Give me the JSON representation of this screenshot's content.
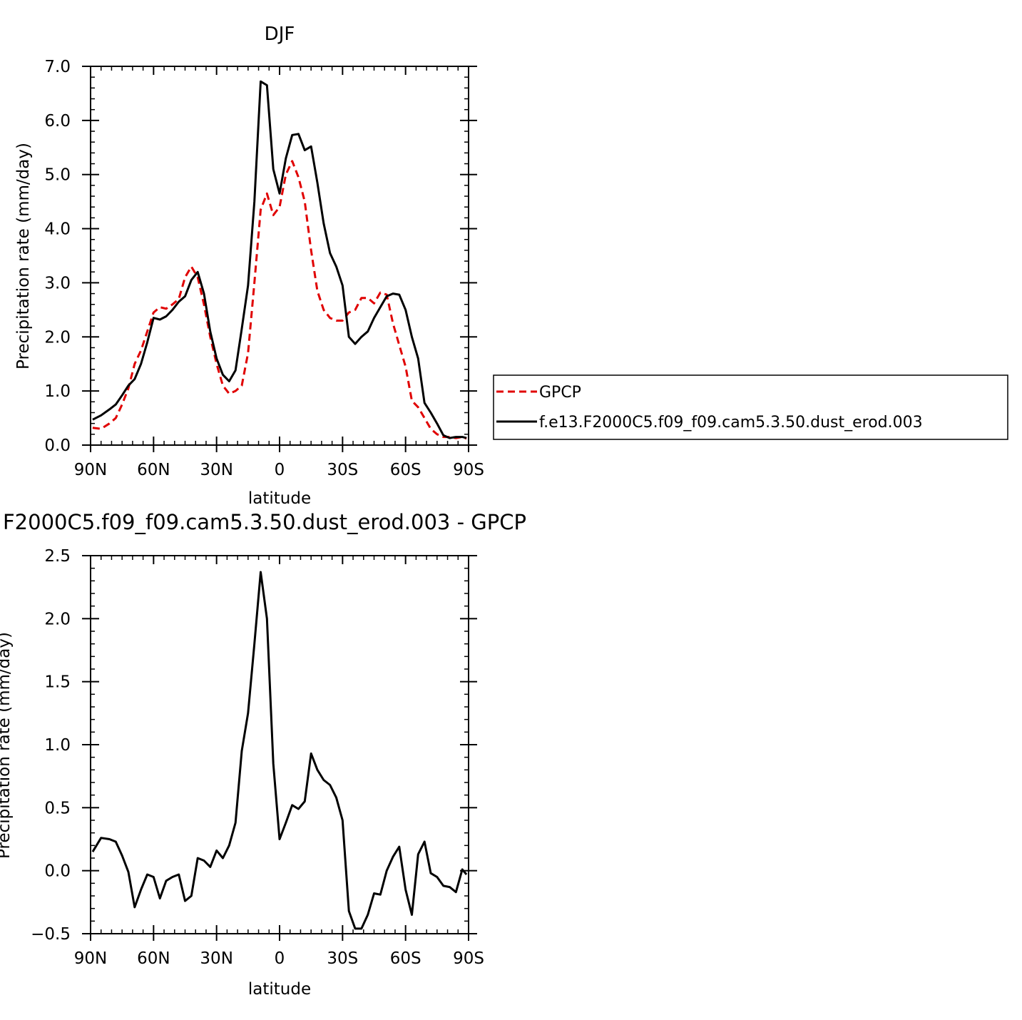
{
  "chart_data": [
    {
      "type": "line",
      "title": "DJF",
      "xlabel": "latitude",
      "ylabel": "Precipitation rate (mm/day)",
      "xlim": [
        90,
        -90
      ],
      "ylim": [
        0,
        7
      ],
      "xticks": [
        90,
        60,
        30,
        0,
        -30,
        -60,
        -90
      ],
      "xtick_labels": [
        "90N",
        "60N",
        "30N",
        "0",
        "30S",
        "60S",
        "90S"
      ],
      "yticks": [
        0,
        1,
        2,
        3,
        4,
        5,
        6,
        7
      ],
      "ytick_labels": [
        "0.0",
        "1.0",
        "2.0",
        "3.0",
        "4.0",
        "5.0",
        "6.0",
        "7.0"
      ],
      "legend_position": "right",
      "series": [
        {
          "name": "GPCP",
          "color": "#e00000",
          "style": "dashed",
          "x": [
            89,
            85,
            81,
            78,
            75,
            72,
            69,
            66,
            63,
            60,
            57,
            54,
            51,
            48,
            45,
            42,
            39,
            36,
            33,
            30,
            27,
            24,
            21,
            18,
            15,
            12,
            9,
            6,
            3,
            0,
            -3,
            -6,
            -9,
            -12,
            -15,
            -18,
            -21,
            -24,
            -27,
            -30,
            -33,
            -36,
            -39,
            -42,
            -45,
            -48,
            -51,
            -54,
            -57,
            -60,
            -63,
            -66,
            -69,
            -72,
            -75,
            -78,
            -81,
            -84,
            -87,
            -89
          ],
          "y": [
            0.32,
            0.3,
            0.4,
            0.5,
            0.75,
            1.05,
            1.5,
            1.75,
            2.1,
            2.45,
            2.55,
            2.52,
            2.6,
            2.7,
            3.1,
            3.3,
            3.1,
            2.6,
            2.0,
            1.5,
            1.1,
            0.95,
            1.0,
            1.1,
            1.7,
            3.0,
            4.35,
            4.65,
            4.25,
            4.4,
            5.0,
            5.25,
            4.95,
            4.5,
            3.6,
            2.85,
            2.5,
            2.35,
            2.3,
            2.3,
            2.45,
            2.5,
            2.72,
            2.72,
            2.62,
            2.82,
            2.78,
            2.25,
            1.85,
            1.45,
            0.82,
            0.7,
            0.5,
            0.3,
            0.2,
            0.15,
            0.15,
            0.13,
            0.15,
            0.12
          ]
        },
        {
          "name": "f.e13.F2000C5.f09_f09.cam5.3.50.dust_erod.003",
          "color": "#000000",
          "style": "solid",
          "x": [
            89,
            85,
            81,
            78,
            75,
            72,
            69,
            66,
            63,
            60,
            57,
            54,
            51,
            48,
            45,
            42,
            39,
            36,
            33,
            30,
            27,
            24,
            21,
            18,
            15,
            12,
            9,
            6,
            3,
            0,
            -3,
            -6,
            -9,
            -12,
            -15,
            -18,
            -21,
            -24,
            -27,
            -30,
            -33,
            -36,
            -39,
            -42,
            -45,
            -48,
            -51,
            -54,
            -57,
            -60,
            -63,
            -66,
            -69,
            -72,
            -75,
            -78,
            -81,
            -84,
            -87,
            -89
          ],
          "y": [
            0.47,
            0.55,
            0.66,
            0.75,
            0.92,
            1.1,
            1.22,
            1.5,
            1.9,
            2.35,
            2.32,
            2.38,
            2.5,
            2.65,
            2.75,
            3.05,
            3.2,
            2.8,
            2.1,
            1.6,
            1.3,
            1.18,
            1.38,
            2.15,
            2.95,
            4.5,
            6.72,
            6.65,
            5.1,
            4.65,
            5.3,
            5.73,
            5.75,
            5.45,
            5.52,
            4.85,
            4.1,
            3.55,
            3.3,
            2.95,
            2.0,
            1.87,
            2.0,
            2.1,
            2.35,
            2.55,
            2.75,
            2.8,
            2.78,
            2.5,
            2.0,
            1.6,
            0.78,
            0.6,
            0.4,
            0.18,
            0.13,
            0.15,
            0.15,
            0.13
          ]
        }
      ]
    },
    {
      "type": "line",
      "title": "F2000C5.f09_f09.cam5.3.50.dust_erod.003 - GPCP",
      "xlabel": "latitude",
      "ylabel": "Precipitation rate (mm/day)",
      "xlim": [
        90,
        -90
      ],
      "ylim": [
        -0.5,
        2.5
      ],
      "xticks": [
        90,
        60,
        30,
        0,
        -30,
        -60,
        -90
      ],
      "xtick_labels": [
        "90N",
        "60N",
        "30N",
        "0",
        "30S",
        "60S",
        "90S"
      ],
      "yticks": [
        -0.5,
        0,
        0.5,
        1,
        1.5,
        2,
        2.5
      ],
      "ytick_labels": [
        "−0.5",
        "0.0",
        "0.5",
        "1.0",
        "1.5",
        "2.0",
        "2.5"
      ],
      "series": [
        {
          "color": "#000000",
          "style": "solid",
          "x": [
            89,
            85,
            81,
            78,
            75,
            72,
            69,
            66,
            63,
            60,
            57,
            54,
            51,
            48,
            45,
            42,
            39,
            36,
            33,
            30,
            27,
            24,
            21,
            18,
            15,
            12,
            9,
            6,
            3,
            0,
            -3,
            -6,
            -9,
            -12,
            -15,
            -18,
            -21,
            -24,
            -27,
            -30,
            -33,
            -36,
            -39,
            -42,
            -45,
            -48,
            -51,
            -54,
            -57,
            -60,
            -63,
            -66,
            -69,
            -72,
            -75,
            -78,
            -81,
            -84,
            -87,
            -89
          ],
          "y": [
            0.15,
            0.26,
            0.25,
            0.23,
            0.12,
            -0.01,
            -0.29,
            -0.15,
            -0.03,
            -0.05,
            -0.22,
            -0.08,
            -0.05,
            -0.03,
            -0.24,
            -0.2,
            0.1,
            0.08,
            0.03,
            0.16,
            0.1,
            0.2,
            0.38,
            0.95,
            1.25,
            1.8,
            2.37,
            2.0,
            0.85,
            0.25,
            0.38,
            0.52,
            0.49,
            0.55,
            0.93,
            0.8,
            0.72,
            0.68,
            0.58,
            0.4,
            -0.32,
            -0.46,
            -0.46,
            -0.35,
            -0.18,
            -0.19,
            0.0,
            0.11,
            0.19,
            -0.15,
            -0.35,
            0.13,
            0.23,
            -0.02,
            -0.05,
            -0.12,
            -0.13,
            -0.17,
            0.01,
            -0.03
          ]
        }
      ]
    }
  ]
}
